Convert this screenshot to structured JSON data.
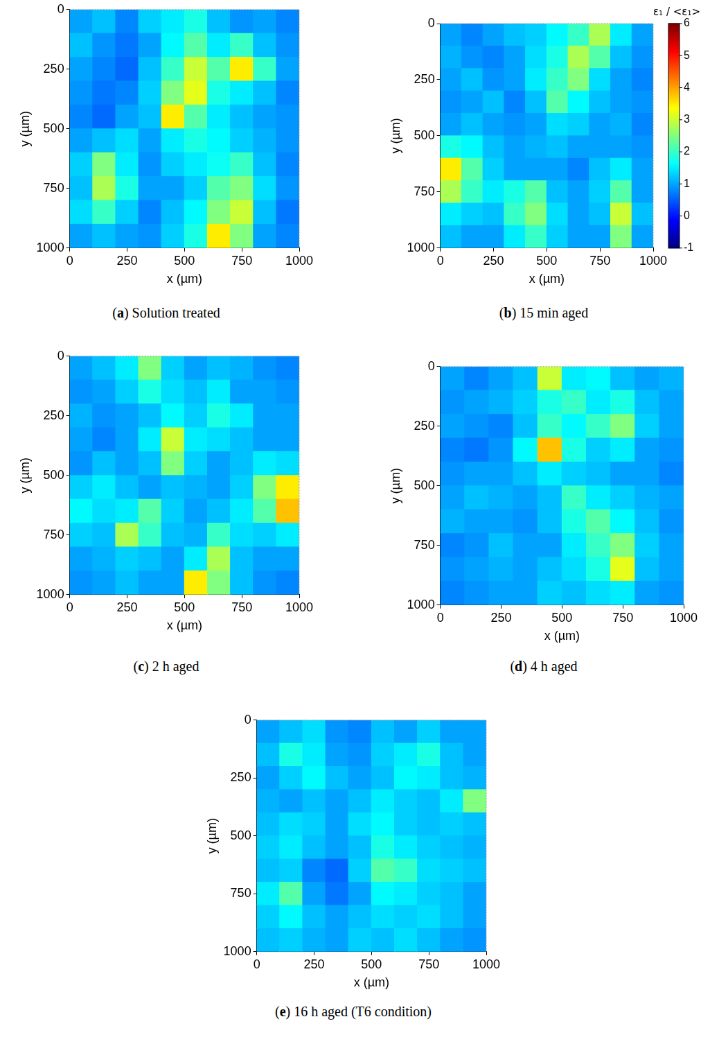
{
  "chart_data": [
    {
      "type": "heatmap",
      "title": "(a) Solution treated",
      "xlabel": "x (µm)",
      "ylabel": "y (µm)",
      "xlim": [
        0,
        1000
      ],
      "ylim": [
        1000,
        0
      ],
      "xticks": [
        0,
        250,
        500,
        750,
        1000
      ],
      "yticks": [
        0,
        250,
        500,
        750,
        1000
      ],
      "grid": false,
      "x": [
        50,
        150,
        250,
        350,
        450,
        550,
        650,
        750,
        850,
        950
      ],
      "y": [
        50,
        150,
        250,
        350,
        450,
        550,
        650,
        750,
        850,
        950
      ],
      "values": [
        [
          1.0,
          1.2,
          0.8,
          1.3,
          1.5,
          1.8,
          1.2,
          0.9,
          1.0,
          0.8
        ],
        [
          1.2,
          0.9,
          0.7,
          1.0,
          1.6,
          2.2,
          1.5,
          2.0,
          1.2,
          0.9
        ],
        [
          1.0,
          0.8,
          0.6,
          1.2,
          2.0,
          3.0,
          2.2,
          3.5,
          2.0,
          1.0
        ],
        [
          0.9,
          0.7,
          0.8,
          1.3,
          2.5,
          3.2,
          1.8,
          1.5,
          1.2,
          0.8
        ],
        [
          0.8,
          0.6,
          1.0,
          1.2,
          3.5,
          2.2,
          1.5,
          1.2,
          1.0,
          0.9
        ],
        [
          1.0,
          1.2,
          1.4,
          1.0,
          1.5,
          1.8,
          1.6,
          1.3,
          1.1,
          0.9
        ],
        [
          1.3,
          2.5,
          1.5,
          0.9,
          1.3,
          1.5,
          1.7,
          2.0,
          1.2,
          0.8
        ],
        [
          1.2,
          2.8,
          1.8,
          1.0,
          1.0,
          1.3,
          2.2,
          2.5,
          1.4,
          0.9
        ],
        [
          1.4,
          2.0,
          1.3,
          0.8,
          1.2,
          1.6,
          2.5,
          3.0,
          1.2,
          0.7
        ],
        [
          1.0,
          1.2,
          1.0,
          0.9,
          1.3,
          1.8,
          3.5,
          2.5,
          1.0,
          0.8
        ]
      ]
    },
    {
      "type": "heatmap",
      "title": "(b) 15 min aged",
      "xlabel": "x (µm)",
      "ylabel": "y (µm)",
      "xlim": [
        0,
        1000
      ],
      "ylim": [
        1000,
        0
      ],
      "xticks": [
        0,
        250,
        500,
        750,
        1000
      ],
      "yticks": [
        0,
        250,
        500,
        750,
        1000
      ],
      "grid": false,
      "x": [
        50,
        150,
        250,
        350,
        450,
        550,
        650,
        750,
        850,
        950
      ],
      "y": [
        50,
        150,
        250,
        350,
        450,
        550,
        650,
        750,
        850,
        950
      ],
      "values": [
        [
          1.0,
          0.8,
          1.0,
          1.2,
          1.3,
          1.6,
          2.0,
          2.8,
          1.5,
          1.0
        ],
        [
          1.1,
          0.9,
          0.8,
          1.0,
          1.4,
          1.8,
          2.8,
          2.2,
          1.2,
          0.9
        ],
        [
          1.0,
          1.2,
          0.9,
          1.0,
          1.5,
          2.0,
          2.5,
          1.4,
          1.0,
          0.8
        ],
        [
          0.9,
          1.0,
          1.2,
          0.8,
          1.2,
          2.2,
          1.6,
          1.2,
          1.0,
          0.9
        ],
        [
          1.0,
          1.2,
          1.0,
          0.9,
          1.0,
          1.4,
          1.3,
          1.0,
          1.1,
          0.8
        ],
        [
          1.8,
          1.6,
          1.2,
          1.0,
          1.1,
          1.2,
          1.0,
          1.0,
          1.0,
          0.9
        ],
        [
          3.5,
          2.2,
          1.3,
          1.0,
          1.0,
          1.0,
          0.8,
          1.2,
          1.5,
          1.0
        ],
        [
          2.8,
          2.0,
          1.5,
          1.8,
          2.2,
          1.2,
          1.0,
          1.3,
          2.2,
          1.0
        ],
        [
          1.5,
          1.3,
          1.2,
          2.0,
          2.5,
          1.4,
          1.0,
          1.2,
          3.0,
          1.2
        ],
        [
          1.2,
          1.0,
          1.0,
          1.5,
          2.0,
          1.3,
          1.0,
          1.0,
          2.5,
          1.0
        ]
      ],
      "colorbar": {
        "label": "ε₁ / <ε₁>",
        "range": [
          -1,
          6
        ],
        "ticks": [
          -1,
          0,
          1,
          2,
          3,
          4,
          5,
          6
        ]
      }
    },
    {
      "type": "heatmap",
      "title": "(c) 2 h aged",
      "xlabel": "x (µm)",
      "ylabel": "y (µm)",
      "xlim": [
        0,
        1000
      ],
      "ylim": [
        1000,
        0
      ],
      "xticks": [
        0,
        250,
        500,
        750,
        1000
      ],
      "yticks": [
        0,
        250,
        500,
        750,
        1000
      ],
      "grid": false,
      "x": [
        50,
        150,
        250,
        350,
        450,
        550,
        650,
        750,
        850,
        950
      ],
      "y": [
        50,
        150,
        250,
        350,
        450,
        550,
        650,
        750,
        850,
        950
      ],
      "values": [
        [
          1.0,
          1.2,
          1.5,
          2.5,
          1.3,
          1.0,
          1.2,
          1.1,
          0.9,
          0.8
        ],
        [
          0.9,
          1.0,
          1.3,
          1.8,
          1.4,
          1.2,
          1.5,
          1.0,
          1.0,
          0.9
        ],
        [
          1.1,
          0.9,
          1.0,
          1.2,
          1.6,
          1.3,
          1.8,
          1.5,
          1.0,
          1.0
        ],
        [
          1.0,
          0.8,
          1.0,
          1.5,
          3.0,
          1.5,
          1.4,
          1.2,
          1.0,
          1.0
        ],
        [
          0.9,
          1.2,
          1.0,
          1.2,
          2.5,
          1.3,
          1.0,
          1.2,
          1.5,
          1.4
        ],
        [
          1.3,
          1.5,
          1.2,
          1.0,
          1.2,
          1.1,
          1.0,
          1.3,
          2.5,
          3.5
        ],
        [
          1.6,
          1.4,
          1.5,
          2.2,
          1.3,
          1.0,
          1.2,
          1.5,
          2.2,
          3.8
        ],
        [
          1.3,
          1.2,
          2.8,
          2.0,
          1.2,
          1.1,
          2.0,
          1.4,
          1.3,
          1.5
        ],
        [
          1.0,
          1.1,
          1.3,
          1.2,
          1.0,
          1.5,
          2.8,
          1.2,
          1.0,
          1.0
        ],
        [
          0.9,
          1.0,
          1.2,
          1.0,
          1.0,
          3.5,
          2.5,
          1.2,
          0.9,
          0.8
        ]
      ]
    },
    {
      "type": "heatmap",
      "title": "(d) 4 h aged",
      "xlabel": "x (µm)",
      "ylabel": "y (µm)",
      "xlim": [
        0,
        1000
      ],
      "ylim": [
        1000,
        0
      ],
      "xticks": [
        0,
        250,
        500,
        750,
        1000
      ],
      "yticks": [
        0,
        250,
        500,
        750,
        1000
      ],
      "grid": false,
      "x": [
        50,
        150,
        250,
        350,
        450,
        550,
        650,
        750,
        850,
        950
      ],
      "y": [
        50,
        150,
        250,
        350,
        450,
        550,
        650,
        750,
        850,
        950
      ],
      "values": [
        [
          1.0,
          0.8,
          1.0,
          1.2,
          3.0,
          1.5,
          1.6,
          1.2,
          1.0,
          1.1
        ],
        [
          0.9,
          1.0,
          1.1,
          1.3,
          1.8,
          2.0,
          1.5,
          1.8,
          1.2,
          1.0
        ],
        [
          1.0,
          0.9,
          0.8,
          1.2,
          2.0,
          1.6,
          2.0,
          2.5,
          1.3,
          1.0
        ],
        [
          0.8,
          0.7,
          0.9,
          1.6,
          3.8,
          1.8,
          1.3,
          1.5,
          1.0,
          0.9
        ],
        [
          0.9,
          1.0,
          1.0,
          1.2,
          1.5,
          1.3,
          1.2,
          1.0,
          1.0,
          0.8
        ],
        [
          1.0,
          1.2,
          1.1,
          1.0,
          1.2,
          2.0,
          1.5,
          1.3,
          1.1,
          1.0
        ],
        [
          1.1,
          1.0,
          1.0,
          0.9,
          1.2,
          1.8,
          2.2,
          1.6,
          1.2,
          0.9
        ],
        [
          0.8,
          0.9,
          1.2,
          1.0,
          1.0,
          1.5,
          2.0,
          2.5,
          1.3,
          1.0
        ],
        [
          0.9,
          1.0,
          1.1,
          1.0,
          1.2,
          1.4,
          1.8,
          3.2,
          1.2,
          1.0
        ],
        [
          0.8,
          0.9,
          1.0,
          1.0,
          1.3,
          1.2,
          1.4,
          1.5,
          1.0,
          0.9
        ]
      ]
    },
    {
      "type": "heatmap",
      "title": "(e) 16 h aged (T6 condition)",
      "xlabel": "x (µm)",
      "ylabel": "y (µm)",
      "xlim": [
        0,
        1000
      ],
      "ylim": [
        1000,
        0
      ],
      "xticks": [
        0,
        250,
        500,
        750,
        1000
      ],
      "yticks": [
        0,
        250,
        500,
        750,
        1000
      ],
      "grid": false,
      "x": [
        50,
        150,
        250,
        350,
        450,
        550,
        650,
        750,
        850,
        950
      ],
      "y": [
        50,
        150,
        250,
        350,
        450,
        550,
        650,
        750,
        850,
        950
      ],
      "values": [
        [
          1.0,
          1.2,
          1.4,
          0.9,
          0.8,
          1.2,
          1.0,
          1.3,
          1.0,
          1.0
        ],
        [
          1.2,
          1.8,
          1.5,
          1.0,
          0.9,
          1.3,
          1.5,
          1.8,
          1.2,
          1.0
        ],
        [
          1.0,
          1.3,
          1.6,
          1.2,
          1.0,
          1.2,
          1.6,
          1.5,
          1.2,
          1.1
        ],
        [
          1.1,
          1.0,
          1.2,
          1.0,
          1.2,
          1.5,
          1.3,
          1.2,
          1.5,
          2.5
        ],
        [
          1.2,
          1.4,
          1.3,
          1.0,
          1.4,
          1.6,
          1.3,
          1.2,
          1.3,
          1.2
        ],
        [
          1.3,
          1.5,
          1.2,
          1.0,
          1.2,
          1.8,
          1.5,
          1.3,
          1.2,
          1.1
        ],
        [
          1.2,
          1.3,
          0.8,
          0.6,
          1.3,
          2.2,
          2.0,
          1.4,
          1.3,
          1.2
        ],
        [
          1.5,
          2.2,
          1.0,
          0.7,
          1.0,
          1.6,
          1.5,
          1.3,
          1.2,
          1.0
        ],
        [
          1.3,
          1.6,
          1.2,
          1.0,
          1.2,
          1.4,
          1.3,
          1.4,
          1.2,
          1.0
        ],
        [
          1.2,
          1.3,
          1.1,
          1.0,
          1.3,
          1.2,
          1.4,
          1.2,
          1.0,
          0.9
        ]
      ]
    }
  ]
}
